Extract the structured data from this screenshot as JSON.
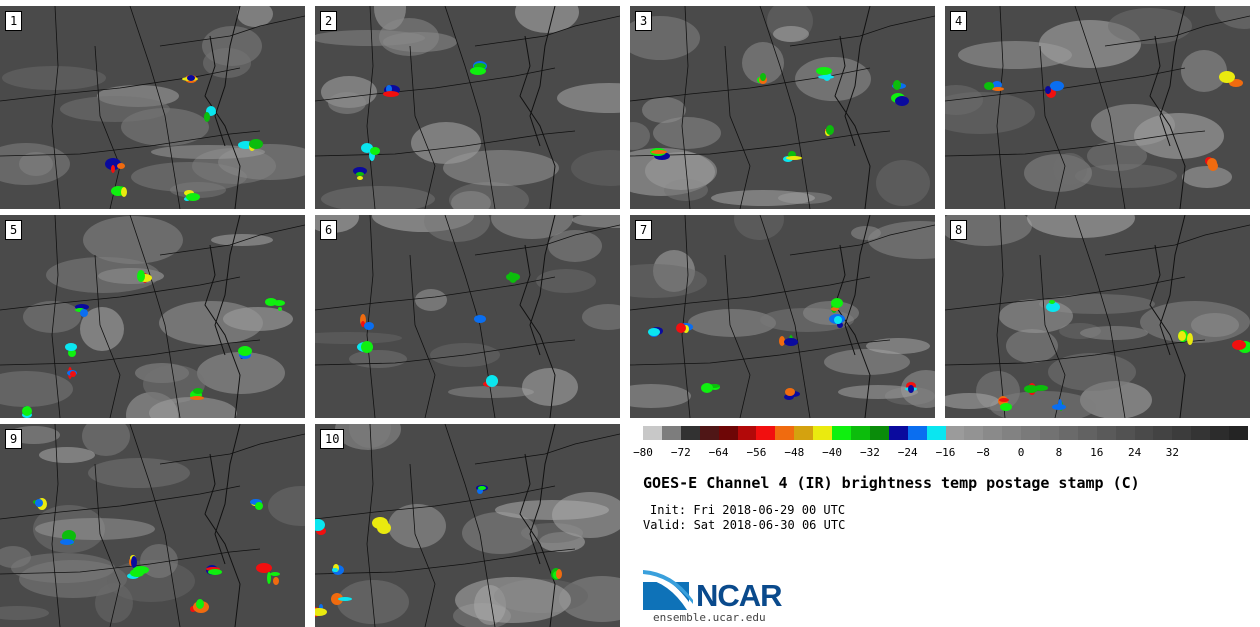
{
  "panels": [
    {
      "label": "1"
    },
    {
      "label": "2"
    },
    {
      "label": "3"
    },
    {
      "label": "4"
    },
    {
      "label": "5"
    },
    {
      "label": "6"
    },
    {
      "label": "7"
    },
    {
      "label": "8"
    },
    {
      "label": "9"
    },
    {
      "label": "10"
    }
  ],
  "colorbar": {
    "colors": [
      "#c8c8c8",
      "#7d7d7d",
      "#323232",
      "#4f1616",
      "#6e0606",
      "#b20909",
      "#f20f0f",
      "#f06b0f",
      "#d4a20f",
      "#eaea0f",
      "#0ff00f",
      "#0cbd0c",
      "#0a8c0a",
      "#0a0a9e",
      "#0a6ef0",
      "#0ae6f0",
      "#9b9b9b",
      "#939393",
      "#8a8a8a",
      "#828282",
      "#7a7a7a",
      "#727272",
      "#6a6a6a",
      "#626262",
      "#5a5a5a",
      "#525252",
      "#4a4a4a",
      "#434343",
      "#3c3c3c",
      "#343434",
      "#2c2c2c",
      "#242424"
    ],
    "ticks": [
      "−80",
      "−72",
      "−64",
      "−56",
      "−48",
      "−40",
      "−32",
      "−24",
      "−16",
      "−8",
      "0",
      "8",
      "16",
      "24",
      "32"
    ]
  },
  "title": "GOES-E Channel 4 (IR) brightness temp postage stamp (C)",
  "init_line": "Init: Fri 2018-06-29 00 UTC",
  "valid_line": "Valid: Sat 2018-06-30 06 UTC",
  "logo_text": "NCAR",
  "url": "ensemble.ucar.edu"
}
